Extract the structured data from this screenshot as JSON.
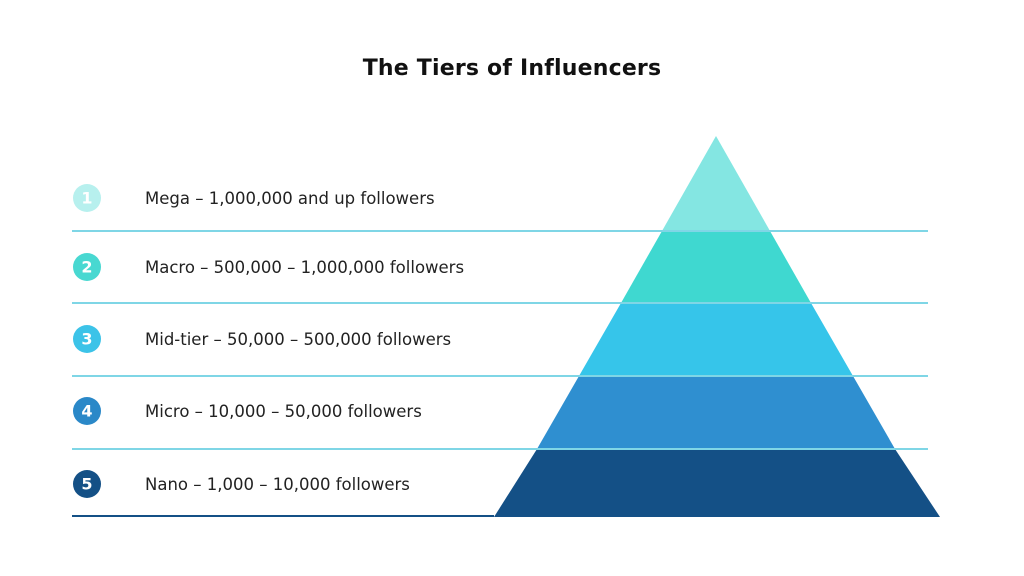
{
  "title": "The Tiers of Influencers",
  "tiers": [
    {
      "number": "1",
      "label": "Mega – 1,000,000 and up followers",
      "color": "#84e6e2",
      "badge_color": "#b7f0ee"
    },
    {
      "number": "2",
      "label": "Macro – 500,000 – 1,000,000 followers",
      "color": "#3fd8d0",
      "badge_color": "#48d8d1"
    },
    {
      "number": "3",
      "label": "Mid-tier – 50,000 – 500,000 followers",
      "color": "#36c5ea",
      "badge_color": "#3cc3e8"
    },
    {
      "number": "4",
      "label": "Micro – 10,000 – 50,000 followers",
      "color": "#2f8fd0",
      "badge_color": "#2a88c8"
    },
    {
      "number": "5",
      "label": "Nano – 1,000 – 10,000 followers",
      "color": "#145086",
      "badge_color": "#145086"
    }
  ],
  "separator_color": "#7fd6e6",
  "baseline_color": "#145086"
}
